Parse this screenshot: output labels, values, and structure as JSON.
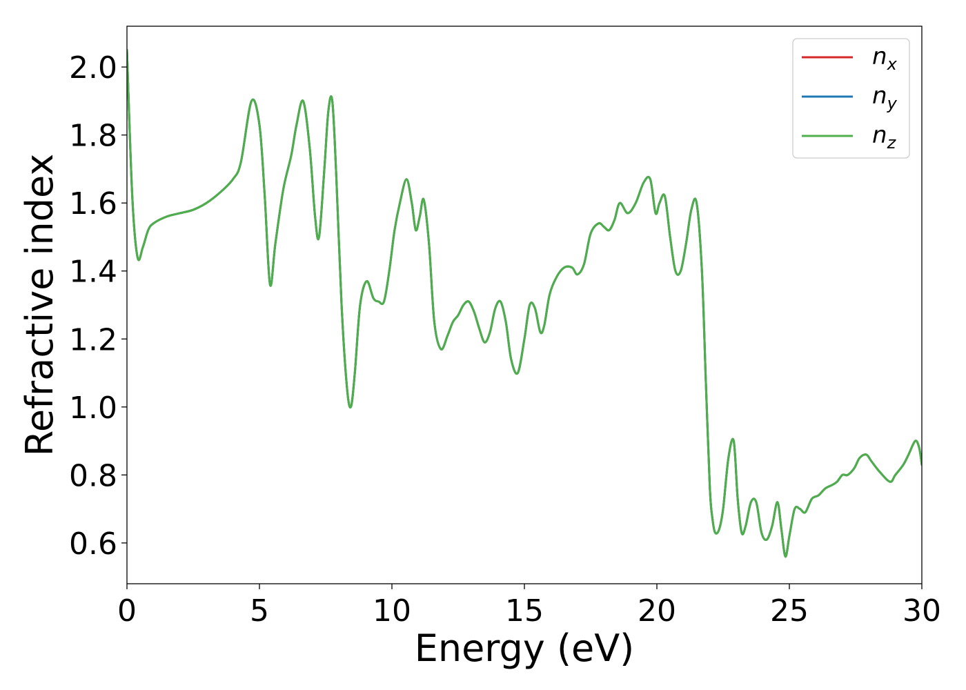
{
  "chart_data": {
    "type": "line",
    "title": "",
    "xlabel": "Energy (eV)",
    "ylabel": "Refractive index",
    "xlim": [
      0,
      30
    ],
    "ylim": [
      0.48,
      2.12
    ],
    "xticks": [
      0,
      5,
      10,
      15,
      20,
      25,
      30
    ],
    "xtick_labels": [
      "0",
      "5",
      "10",
      "15",
      "20",
      "25",
      "30"
    ],
    "yticks": [
      0.6,
      0.8,
      1.0,
      1.2,
      1.4,
      1.6,
      1.8,
      2.0
    ],
    "ytick_labels": [
      "0.6",
      "0.8",
      "1.0",
      "1.2",
      "1.4",
      "1.6",
      "1.8",
      "2.0"
    ],
    "grid": false,
    "legend": {
      "position": "top-right",
      "entries": [
        {
          "base": "n",
          "sub": "x",
          "color": "#d62728"
        },
        {
          "base": "n",
          "sub": "y",
          "color": "#1f77b4"
        },
        {
          "base": "n",
          "sub": "z",
          "color": "#4daf4a"
        }
      ]
    },
    "x": [
      0.0,
      0.2,
      0.4,
      0.6,
      0.8,
      1.0,
      1.5,
      2.0,
      2.5,
      3.0,
      3.5,
      4.0,
      4.3,
      4.7,
      5.0,
      5.2,
      5.4,
      5.6,
      5.9,
      6.2,
      6.4,
      6.65,
      6.9,
      7.1,
      7.25,
      7.45,
      7.6,
      7.75,
      7.9,
      8.1,
      8.3,
      8.45,
      8.6,
      8.8,
      9.05,
      9.3,
      9.5,
      9.7,
      9.9,
      10.1,
      10.3,
      10.55,
      10.75,
      10.9,
      11.05,
      11.2,
      11.4,
      11.6,
      11.85,
      12.1,
      12.3,
      12.5,
      12.7,
      12.9,
      13.1,
      13.3,
      13.5,
      13.7,
      13.9,
      14.1,
      14.3,
      14.5,
      14.75,
      15.0,
      15.2,
      15.4,
      15.6,
      15.75,
      15.95,
      16.2,
      16.5,
      16.8,
      17.0,
      17.25,
      17.5,
      17.8,
      18.0,
      18.2,
      18.4,
      18.6,
      18.9,
      19.2,
      19.5,
      19.75,
      19.95,
      20.1,
      20.3,
      20.5,
      20.7,
      20.9,
      21.1,
      21.3,
      21.5,
      21.7,
      21.85,
      22.0,
      22.1,
      22.2,
      22.35,
      22.5,
      22.7,
      22.9,
      23.05,
      23.2,
      23.35,
      23.55,
      23.75,
      23.95,
      24.15,
      24.35,
      24.55,
      24.7,
      24.85,
      25.0,
      25.2,
      25.4,
      25.6,
      25.85,
      26.1,
      26.35,
      26.6,
      26.8,
      27.0,
      27.2,
      27.45,
      27.65,
      27.9,
      28.1,
      28.4,
      28.8,
      29.0,
      29.3,
      29.5,
      29.75,
      29.9,
      30.0
    ],
    "series": [
      {
        "name": "n_x",
        "color": "#d62728",
        "values": [
          2.05,
          1.62,
          1.44,
          1.47,
          1.52,
          1.54,
          1.56,
          1.57,
          1.58,
          1.6,
          1.63,
          1.67,
          1.72,
          1.9,
          1.83,
          1.62,
          1.36,
          1.48,
          1.64,
          1.74,
          1.83,
          1.9,
          1.76,
          1.56,
          1.5,
          1.7,
          1.87,
          1.9,
          1.68,
          1.3,
          1.06,
          1.0,
          1.1,
          1.3,
          1.37,
          1.32,
          1.31,
          1.31,
          1.4,
          1.52,
          1.6,
          1.67,
          1.6,
          1.52,
          1.56,
          1.61,
          1.48,
          1.25,
          1.17,
          1.21,
          1.25,
          1.27,
          1.3,
          1.31,
          1.28,
          1.23,
          1.19,
          1.22,
          1.29,
          1.31,
          1.25,
          1.14,
          1.1,
          1.2,
          1.3,
          1.29,
          1.22,
          1.24,
          1.33,
          1.38,
          1.41,
          1.41,
          1.39,
          1.42,
          1.51,
          1.54,
          1.53,
          1.52,
          1.55,
          1.6,
          1.57,
          1.6,
          1.66,
          1.67,
          1.57,
          1.6,
          1.62,
          1.5,
          1.4,
          1.4,
          1.48,
          1.58,
          1.6,
          1.4,
          1.07,
          0.76,
          0.67,
          0.63,
          0.64,
          0.7,
          0.85,
          0.9,
          0.73,
          0.63,
          0.65,
          0.72,
          0.72,
          0.63,
          0.61,
          0.65,
          0.72,
          0.64,
          0.56,
          0.62,
          0.7,
          0.7,
          0.69,
          0.73,
          0.74,
          0.76,
          0.77,
          0.78,
          0.8,
          0.8,
          0.82,
          0.85,
          0.86,
          0.84,
          0.81,
          0.78,
          0.8,
          0.83,
          0.86,
          0.9,
          0.88,
          0.83
        ]
      },
      {
        "name": "n_y",
        "color": "#1f77b4",
        "values": [
          2.05,
          1.62,
          1.44,
          1.47,
          1.52,
          1.54,
          1.56,
          1.57,
          1.58,
          1.6,
          1.63,
          1.67,
          1.72,
          1.9,
          1.83,
          1.62,
          1.36,
          1.48,
          1.64,
          1.74,
          1.83,
          1.9,
          1.76,
          1.56,
          1.5,
          1.7,
          1.87,
          1.9,
          1.68,
          1.3,
          1.06,
          1.0,
          1.1,
          1.3,
          1.37,
          1.32,
          1.31,
          1.31,
          1.4,
          1.52,
          1.6,
          1.67,
          1.6,
          1.52,
          1.56,
          1.61,
          1.48,
          1.25,
          1.17,
          1.21,
          1.25,
          1.27,
          1.3,
          1.31,
          1.28,
          1.23,
          1.19,
          1.22,
          1.29,
          1.31,
          1.25,
          1.14,
          1.1,
          1.2,
          1.3,
          1.29,
          1.22,
          1.24,
          1.33,
          1.38,
          1.41,
          1.41,
          1.39,
          1.42,
          1.51,
          1.54,
          1.53,
          1.52,
          1.55,
          1.6,
          1.57,
          1.6,
          1.66,
          1.67,
          1.57,
          1.6,
          1.62,
          1.5,
          1.4,
          1.4,
          1.48,
          1.58,
          1.6,
          1.4,
          1.07,
          0.76,
          0.67,
          0.63,
          0.64,
          0.7,
          0.85,
          0.9,
          0.73,
          0.63,
          0.65,
          0.72,
          0.72,
          0.63,
          0.61,
          0.65,
          0.72,
          0.64,
          0.56,
          0.62,
          0.7,
          0.7,
          0.69,
          0.73,
          0.74,
          0.76,
          0.77,
          0.78,
          0.8,
          0.8,
          0.82,
          0.85,
          0.86,
          0.84,
          0.81,
          0.78,
          0.8,
          0.83,
          0.86,
          0.9,
          0.88,
          0.83
        ]
      },
      {
        "name": "n_z",
        "color": "#4daf4a",
        "values": [
          2.05,
          1.62,
          1.44,
          1.47,
          1.52,
          1.54,
          1.56,
          1.57,
          1.58,
          1.6,
          1.63,
          1.67,
          1.72,
          1.9,
          1.83,
          1.62,
          1.36,
          1.48,
          1.64,
          1.74,
          1.83,
          1.9,
          1.76,
          1.56,
          1.5,
          1.7,
          1.87,
          1.9,
          1.68,
          1.3,
          1.06,
          1.0,
          1.1,
          1.3,
          1.37,
          1.32,
          1.31,
          1.31,
          1.4,
          1.52,
          1.6,
          1.67,
          1.6,
          1.52,
          1.56,
          1.61,
          1.48,
          1.25,
          1.17,
          1.21,
          1.25,
          1.27,
          1.3,
          1.31,
          1.28,
          1.23,
          1.19,
          1.22,
          1.29,
          1.31,
          1.25,
          1.14,
          1.1,
          1.2,
          1.3,
          1.29,
          1.22,
          1.24,
          1.33,
          1.38,
          1.41,
          1.41,
          1.39,
          1.42,
          1.51,
          1.54,
          1.53,
          1.52,
          1.55,
          1.6,
          1.57,
          1.6,
          1.66,
          1.67,
          1.57,
          1.6,
          1.62,
          1.5,
          1.4,
          1.4,
          1.48,
          1.58,
          1.6,
          1.4,
          1.07,
          0.76,
          0.67,
          0.63,
          0.64,
          0.7,
          0.85,
          0.9,
          0.73,
          0.63,
          0.65,
          0.72,
          0.72,
          0.63,
          0.61,
          0.65,
          0.72,
          0.64,
          0.56,
          0.62,
          0.7,
          0.7,
          0.69,
          0.73,
          0.74,
          0.76,
          0.77,
          0.78,
          0.8,
          0.8,
          0.82,
          0.85,
          0.86,
          0.84,
          0.81,
          0.78,
          0.8,
          0.83,
          0.86,
          0.9,
          0.88,
          0.83
        ]
      }
    ]
  }
}
